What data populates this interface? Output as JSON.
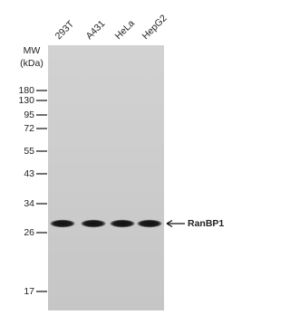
{
  "blot": {
    "lanes": [
      "293T",
      "A431",
      "HeLa",
      "HepG2"
    ],
    "mw_label": "MW",
    "mw_unit": "(kDa)",
    "markers": [
      180,
      130,
      95,
      72,
      55,
      43,
      34,
      26,
      17
    ],
    "band_label": "RanBP1"
  }
}
